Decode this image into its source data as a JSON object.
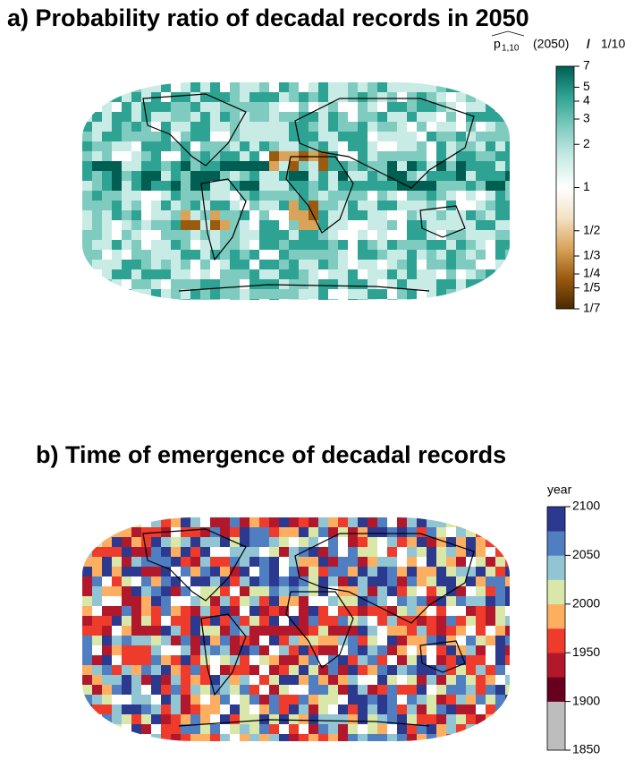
{
  "panels": [
    {
      "title": "a) Probability ratio of decadal records in 2050",
      "colorbar": {
        "label_symbol": "p",
        "label_subscript": "1,10",
        "label_year": "(2050)",
        "label_divider": "/",
        "label_denominator": "1/10",
        "scale": "log",
        "lim": [
          0.142857,
          7
        ],
        "ticks": [
          {
            "value": 7,
            "label": "7"
          },
          {
            "value": 5,
            "label": "5"
          },
          {
            "value": 4,
            "label": "4"
          },
          {
            "value": 3,
            "label": "3"
          },
          {
            "value": 2,
            "label": "2"
          },
          {
            "value": 1,
            "label": "1"
          },
          {
            "value": 0.5,
            "label": "1/2"
          },
          {
            "value": 0.333333,
            "label": "1/3"
          },
          {
            "value": 0.25,
            "label": "1/4"
          },
          {
            "value": 0.2,
            "label": "1/5"
          },
          {
            "value": 0.142857,
            "label": "1/7"
          }
        ],
        "colors": [
          "#4a2800",
          "#9a5a10",
          "#d9a45a",
          "#f3e2c4",
          "#ffffff",
          "#c9ebe5",
          "#7fcbbf",
          "#2fa393",
          "#005e52"
        ]
      }
    },
    {
      "title": "b) Time of emergence of decadal records",
      "colorbar": {
        "label": "year",
        "scale": "linear",
        "lim": [
          1850,
          2100
        ],
        "ticks": [
          1850,
          1900,
          1950,
          2000,
          2050,
          2100
        ],
        "colors": [
          "#bdbdbd",
          "#bdbdbd",
          "#67001f",
          "#b2182b",
          "#ef3b2c",
          "#fdae61",
          "#d9e8a8",
          "#92c5d3",
          "#4f7fc0",
          "#2b3a8f"
        ]
      }
    }
  ]
}
